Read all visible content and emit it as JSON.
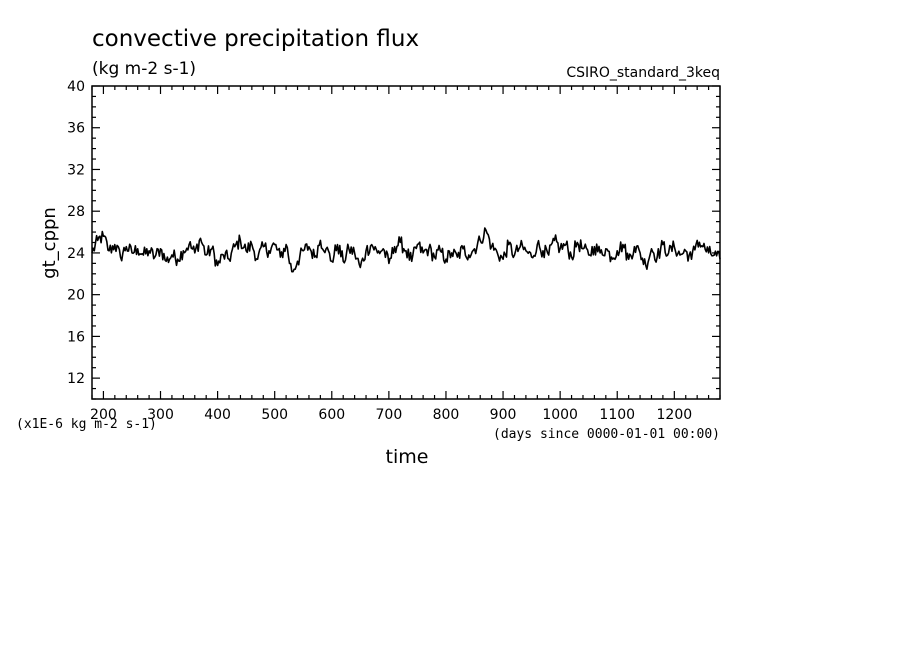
{
  "chart_data": {
    "type": "line",
    "title": "convective precipitation flux",
    "subtitle": "(kg m-2 s-1)",
    "source_label": "CSIRO_standard_3keq",
    "ylabel": "gt_cppn",
    "xlabel": "time",
    "x_units_note": "(days since 0000-01-01 00:00)",
    "y_scale_note": "(x1E-6 kg m-2 s-1)",
    "xlim": [
      180,
      1280
    ],
    "ylim": [
      10,
      40
    ],
    "x_ticks": [
      200,
      300,
      400,
      500,
      600,
      700,
      800,
      900,
      1000,
      1100,
      1200
    ],
    "y_ticks": [
      12,
      16,
      20,
      24,
      28,
      32,
      36,
      40
    ],
    "x_tick_labels": [
      "200",
      "300",
      "400",
      "500",
      "600",
      "700",
      "800",
      "900",
      "1000",
      "1100",
      "1200"
    ],
    "y_tick_labels": [
      "12",
      "16",
      "20",
      "24",
      "28",
      "32",
      "36",
      "40"
    ],
    "series": [
      {
        "name": "gt_cppn",
        "x": [
          180,
          190,
          200,
          210,
          220,
          230,
          240,
          250,
          260,
          270,
          280,
          290,
          300,
          310,
          320,
          330,
          340,
          350,
          360,
          370,
          380,
          390,
          400,
          410,
          420,
          430,
          440,
          450,
          460,
          470,
          480,
          490,
          500,
          510,
          520,
          530,
          540,
          550,
          560,
          570,
          580,
          590,
          600,
          610,
          620,
          630,
          640,
          650,
          660,
          670,
          680,
          690,
          700,
          710,
          720,
          730,
          740,
          750,
          760,
          770,
          780,
          790,
          800,
          810,
          820,
          830,
          840,
          850,
          860,
          870,
          880,
          890,
          900,
          910,
          920,
          930,
          940,
          950,
          960,
          970,
          980,
          990,
          1000,
          1010,
          1020,
          1030,
          1040,
          1050,
          1060,
          1070,
          1080,
          1090,
          1100,
          1110,
          1120,
          1130,
          1140,
          1150,
          1160,
          1170,
          1180,
          1190,
          1200,
          1210,
          1220,
          1230,
          1240,
          1250,
          1260,
          1270,
          1280
        ],
        "values": [
          24.0,
          25.2,
          25.6,
          24.2,
          24.8,
          23.6,
          24.6,
          24.0,
          24.4,
          23.8,
          24.2,
          23.6,
          24.4,
          23.2,
          23.8,
          23.4,
          24.2,
          24.8,
          24.0,
          25.4,
          23.8,
          24.4,
          22.8,
          23.8,
          23.4,
          24.6,
          25.2,
          24.2,
          24.8,
          23.4,
          24.6,
          24.2,
          24.8,
          23.6,
          24.8,
          22.2,
          23.2,
          24.2,
          24.6,
          23.6,
          25.2,
          24.4,
          23.2,
          24.8,
          23.2,
          24.4,
          24.0,
          22.6,
          24.2,
          24.8,
          24.0,
          24.4,
          23.0,
          24.6,
          25.0,
          24.2,
          23.2,
          24.8,
          24.0,
          24.4,
          23.6,
          24.2,
          23.4,
          24.0,
          23.6,
          24.4,
          23.8,
          24.4,
          25.2,
          26.2,
          24.6,
          24.0,
          23.4,
          24.8,
          23.8,
          24.6,
          24.2,
          23.6,
          24.8,
          24.2,
          23.8,
          25.2,
          24.4,
          24.8,
          23.6,
          25.0,
          24.4,
          23.8,
          24.6,
          24.0,
          24.4,
          23.6,
          24.2,
          24.8,
          23.4,
          24.6,
          24.0,
          22.8,
          24.4,
          23.6,
          24.8,
          24.0,
          24.6,
          23.8,
          24.2,
          23.4,
          25.2,
          24.6,
          24.0,
          23.8,
          23.4
        ]
      }
    ]
  }
}
